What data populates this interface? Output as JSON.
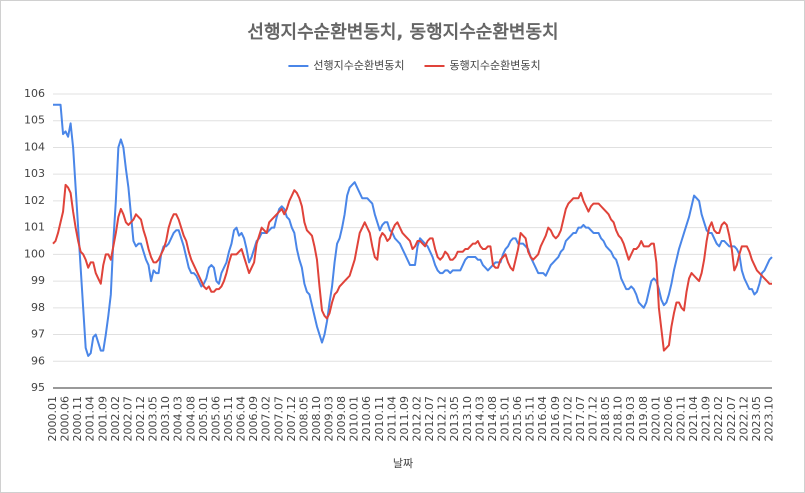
{
  "chart_data": {
    "type": "line",
    "title": "선행지수순환변동치, 동행지수순환변동치",
    "x_label": "날짜",
    "categories": [
      "2000.01",
      null,
      null,
      null,
      null,
      "2000.06",
      null,
      null,
      null,
      null,
      "2000.11",
      null,
      null,
      null,
      null,
      "2001.04",
      null,
      null,
      null,
      null,
      "2001.09",
      null,
      null,
      null,
      null,
      "2002.02",
      null,
      null,
      null,
      null,
      "2002.07",
      null,
      null,
      null,
      null,
      "2002.12",
      null,
      null,
      null,
      null,
      "2003.05",
      null,
      null,
      null,
      null,
      "2003.10",
      null,
      null,
      null,
      null,
      "2004.03",
      null,
      null,
      null,
      null,
      "2004.08",
      null,
      null,
      null,
      null,
      "2005.01",
      null,
      null,
      null,
      null,
      "2005.06",
      null,
      null,
      null,
      null,
      "2005.11",
      null,
      null,
      null,
      null,
      "2006.04",
      null,
      null,
      null,
      null,
      "2006.09",
      null,
      null,
      null,
      null,
      "2007.02",
      null,
      null,
      null,
      null,
      "2007.07",
      null,
      null,
      null,
      null,
      "2007.12",
      null,
      null,
      null,
      null,
      "2008.05",
      null,
      null,
      null,
      null,
      "2008.10",
      null,
      null,
      null,
      null,
      "2009.03",
      null,
      null,
      null,
      null,
      "2009.08",
      null,
      null,
      null,
      null,
      "2010.01",
      null,
      null,
      null,
      null,
      "2010.06",
      null,
      null,
      null,
      null,
      "2010.11",
      null,
      null,
      null,
      null,
      "2011.04",
      null,
      null,
      null,
      null,
      "2011.09",
      null,
      null,
      null,
      null,
      "2012.02",
      null,
      null,
      null,
      null,
      "2012.07",
      null,
      null,
      null,
      null,
      "2012.12",
      null,
      null,
      null,
      null,
      "2013.05",
      null,
      null,
      null,
      null,
      "2013.10",
      null,
      null,
      null,
      null,
      "2014.03",
      null,
      null,
      null,
      null,
      "2014.08",
      null,
      null,
      null,
      null,
      "2015.01",
      null,
      null,
      null,
      null,
      "2015.06",
      null,
      null,
      null,
      null,
      "2015.11",
      null,
      null,
      null,
      null,
      "2016.04",
      null,
      null,
      null,
      null,
      "2016.09",
      null,
      null,
      null,
      null,
      "2017.02",
      null,
      null,
      null,
      null,
      "2017.07",
      null,
      null,
      null,
      null,
      "2017.12",
      null,
      null,
      null,
      null,
      "2018.05",
      null,
      null,
      null,
      null,
      "2018.10",
      null,
      null,
      null,
      null,
      "2019.03",
      null,
      null,
      null,
      null,
      "2019.08",
      null,
      null,
      null,
      null,
      "2020.01",
      null,
      null,
      null,
      null,
      "2020.06",
      null,
      null,
      null,
      null,
      "2020.11",
      null,
      null,
      null,
      null,
      "2021.04",
      null,
      null,
      null,
      null,
      "2021.09",
      null,
      null,
      null,
      null,
      "2022.02",
      null,
      null,
      null,
      null,
      "2022.07",
      null,
      null,
      null,
      null,
      "2022.12",
      null,
      null,
      null,
      null,
      "2023.05",
      null,
      null,
      null,
      null,
      "2023.10",
      null
    ],
    "series": [
      {
        "name": "선행지수순환변동치",
        "color": "#4a86e8",
        "values": [
          105.6,
          105.6,
          105.6,
          105.6,
          104.5,
          104.6,
          104.4,
          104.9,
          104.0,
          102.5,
          101.0,
          99.5,
          98.0,
          96.5,
          96.2,
          96.3,
          96.9,
          97.0,
          96.7,
          96.4,
          96.4,
          97.0,
          97.7,
          98.5,
          100.5,
          102.0,
          104.0,
          104.3,
          104.0,
          103.2,
          102.5,
          101.5,
          100.5,
          100.3,
          100.4,
          100.4,
          100.1,
          99.8,
          99.6,
          99.0,
          99.4,
          99.3,
          99.3,
          100.0,
          100.3,
          100.3,
          100.4,
          100.6,
          100.8,
          100.9,
          100.9,
          100.6,
          100.3,
          99.9,
          99.5,
          99.3,
          99.3,
          99.2,
          99.0,
          98.8,
          98.9,
          99.1,
          99.5,
          99.6,
          99.5,
          99.0,
          98.9,
          99.3,
          99.5,
          99.7,
          100.1,
          100.4,
          100.9,
          101.0,
          100.7,
          100.8,
          100.6,
          100.2,
          99.7,
          99.9,
          100.2,
          100.5,
          100.6,
          100.8,
          100.8,
          100.8,
          100.9,
          101.0,
          101.0,
          101.4,
          101.7,
          101.8,
          101.7,
          101.4,
          101.3,
          101.0,
          100.8,
          100.2,
          99.8,
          99.5,
          98.9,
          98.6,
          98.5,
          98.1,
          97.7,
          97.3,
          97.0,
          96.7,
          97.0,
          97.5,
          98.2,
          98.8,
          99.7,
          100.4,
          100.6,
          101.0,
          101.5,
          102.2,
          102.5,
          102.6,
          102.7,
          102.5,
          102.3,
          102.1,
          102.1,
          102.1,
          102.0,
          101.9,
          101.5,
          101.2,
          100.9,
          101.1,
          101.2,
          101.2,
          100.9,
          100.8,
          100.6,
          100.5,
          100.4,
          100.2,
          100.0,
          99.8,
          99.6,
          99.6,
          99.6,
          100.3,
          100.6,
          100.5,
          100.4,
          100.3,
          100.1,
          99.9,
          99.6,
          99.4,
          99.3,
          99.3,
          99.4,
          99.4,
          99.3,
          99.4,
          99.4,
          99.4,
          99.4,
          99.6,
          99.8,
          99.9,
          99.9,
          99.9,
          99.9,
          99.8,
          99.8,
          99.6,
          99.5,
          99.4,
          99.5,
          99.6,
          99.7,
          99.7,
          99.7,
          100.0,
          100.2,
          100.3,
          100.5,
          100.6,
          100.6,
          100.4,
          100.4,
          100.4,
          100.3,
          100.2,
          99.9,
          99.7,
          99.5,
          99.3,
          99.3,
          99.3,
          99.2,
          99.4,
          99.6,
          99.7,
          99.8,
          99.9,
          100.1,
          100.2,
          100.5,
          100.6,
          100.7,
          100.8,
          100.8,
          101.0,
          101.0,
          101.1,
          101.0,
          101.0,
          100.9,
          100.8,
          100.8,
          100.8,
          100.6,
          100.5,
          100.3,
          100.2,
          100.1,
          99.9,
          99.8,
          99.5,
          99.1,
          98.9,
          98.7,
          98.7,
          98.8,
          98.7,
          98.5,
          98.2,
          98.1,
          98.0,
          98.2,
          98.6,
          99.0,
          99.1,
          99.0,
          98.7,
          98.3,
          98.1,
          98.2,
          98.5,
          98.9,
          99.4,
          99.8,
          100.2,
          100.5,
          100.8,
          101.1,
          101.4,
          101.8,
          102.2,
          102.1,
          102.0,
          101.5,
          101.2,
          100.9,
          100.8,
          100.8,
          100.6,
          100.4,
          100.3,
          100.5,
          100.5,
          100.4,
          100.3,
          100.3,
          100.3,
          100.2,
          100.0,
          99.4,
          99.1,
          98.9,
          98.7,
          98.7,
          98.5,
          98.6,
          98.9,
          99.3,
          99.4,
          99.6,
          99.8,
          99.9
        ]
      },
      {
        "name": "동행지수순환변동치",
        "color": "#e0433a",
        "values": [
          100.4,
          100.5,
          100.8,
          101.2,
          101.6,
          102.6,
          102.5,
          102.3,
          101.6,
          101.0,
          100.5,
          100.1,
          100.0,
          99.8,
          99.5,
          99.7,
          99.7,
          99.3,
          99.1,
          98.9,
          99.6,
          100.0,
          100.0,
          99.8,
          100.3,
          100.8,
          101.4,
          101.7,
          101.5,
          101.2,
          101.1,
          101.2,
          101.3,
          101.5,
          101.4,
          101.3,
          100.9,
          100.6,
          100.2,
          99.9,
          99.7,
          99.7,
          99.8,
          100.0,
          100.2,
          100.5,
          101.0,
          101.3,
          101.5,
          101.5,
          101.3,
          101.0,
          100.7,
          100.5,
          100.1,
          99.8,
          99.6,
          99.4,
          99.2,
          99.0,
          98.8,
          98.7,
          98.8,
          98.6,
          98.6,
          98.7,
          98.7,
          98.8,
          99.0,
          99.3,
          99.7,
          100.0,
          100.0,
          100.0,
          100.1,
          100.2,
          99.9,
          99.6,
          99.3,
          99.5,
          99.7,
          100.4,
          100.7,
          101.0,
          100.9,
          100.8,
          101.2,
          101.3,
          101.4,
          101.5,
          101.6,
          101.7,
          101.5,
          101.7,
          102.0,
          102.2,
          102.4,
          102.3,
          102.1,
          101.8,
          101.2,
          100.9,
          100.8,
          100.7,
          100.3,
          99.8,
          98.8,
          97.9,
          97.7,
          97.6,
          97.8,
          98.2,
          98.5,
          98.6,
          98.8,
          98.9,
          99.0,
          99.1,
          99.2,
          99.5,
          99.8,
          100.3,
          100.8,
          101.0,
          101.2,
          101.0,
          100.8,
          100.3,
          99.9,
          99.8,
          100.6,
          100.8,
          100.7,
          100.5,
          100.6,
          100.9,
          101.1,
          101.2,
          101.0,
          100.8,
          100.7,
          100.6,
          100.5,
          100.2,
          100.3,
          100.5,
          100.5,
          100.4,
          100.3,
          100.5,
          100.6,
          100.6,
          100.2,
          99.9,
          99.8,
          99.9,
          100.1,
          100.0,
          99.8,
          99.8,
          99.9,
          100.1,
          100.1,
          100.1,
          100.2,
          100.2,
          100.3,
          100.4,
          100.4,
          100.5,
          100.3,
          100.2,
          100.2,
          100.3,
          100.3,
          99.6,
          99.5,
          99.5,
          99.8,
          99.9,
          100.0,
          99.7,
          99.5,
          99.4,
          99.8,
          100.2,
          100.8,
          100.7,
          100.6,
          100.1,
          99.9,
          99.8,
          99.9,
          100.0,
          100.3,
          100.5,
          100.7,
          101.0,
          100.9,
          100.7,
          100.6,
          100.7,
          100.9,
          101.3,
          101.7,
          101.9,
          102.0,
          102.1,
          102.1,
          102.1,
          102.3,
          102.0,
          101.8,
          101.6,
          101.8,
          101.9,
          101.9,
          101.9,
          101.8,
          101.7,
          101.6,
          101.5,
          101.3,
          101.2,
          100.9,
          100.7,
          100.6,
          100.4,
          100.1,
          99.8,
          100.0,
          100.2,
          100.2,
          100.3,
          100.5,
          100.3,
          100.3,
          100.3,
          100.4,
          100.4,
          99.7,
          98.0,
          97.2,
          96.4,
          96.5,
          96.6,
          97.3,
          97.8,
          98.2,
          98.2,
          98.0,
          97.9,
          98.6,
          99.1,
          99.3,
          99.2,
          99.1,
          99.0,
          99.3,
          99.8,
          100.5,
          101.0,
          101.2,
          100.9,
          100.8,
          100.8,
          101.1,
          101.2,
          101.1,
          100.7,
          100.2,
          99.4,
          99.6,
          100.0,
          100.3,
          100.3,
          100.3,
          100.1,
          99.8,
          99.6,
          99.4,
          99.3,
          99.2,
          99.1,
          99.0,
          98.9,
          98.9
        ]
      }
    ],
    "ylim": [
      95,
      106
    ],
    "yticks": [
      95,
      96,
      97,
      98,
      99,
      100,
      101,
      102,
      103,
      104,
      105,
      106
    ],
    "grid": true,
    "legend": "top"
  }
}
